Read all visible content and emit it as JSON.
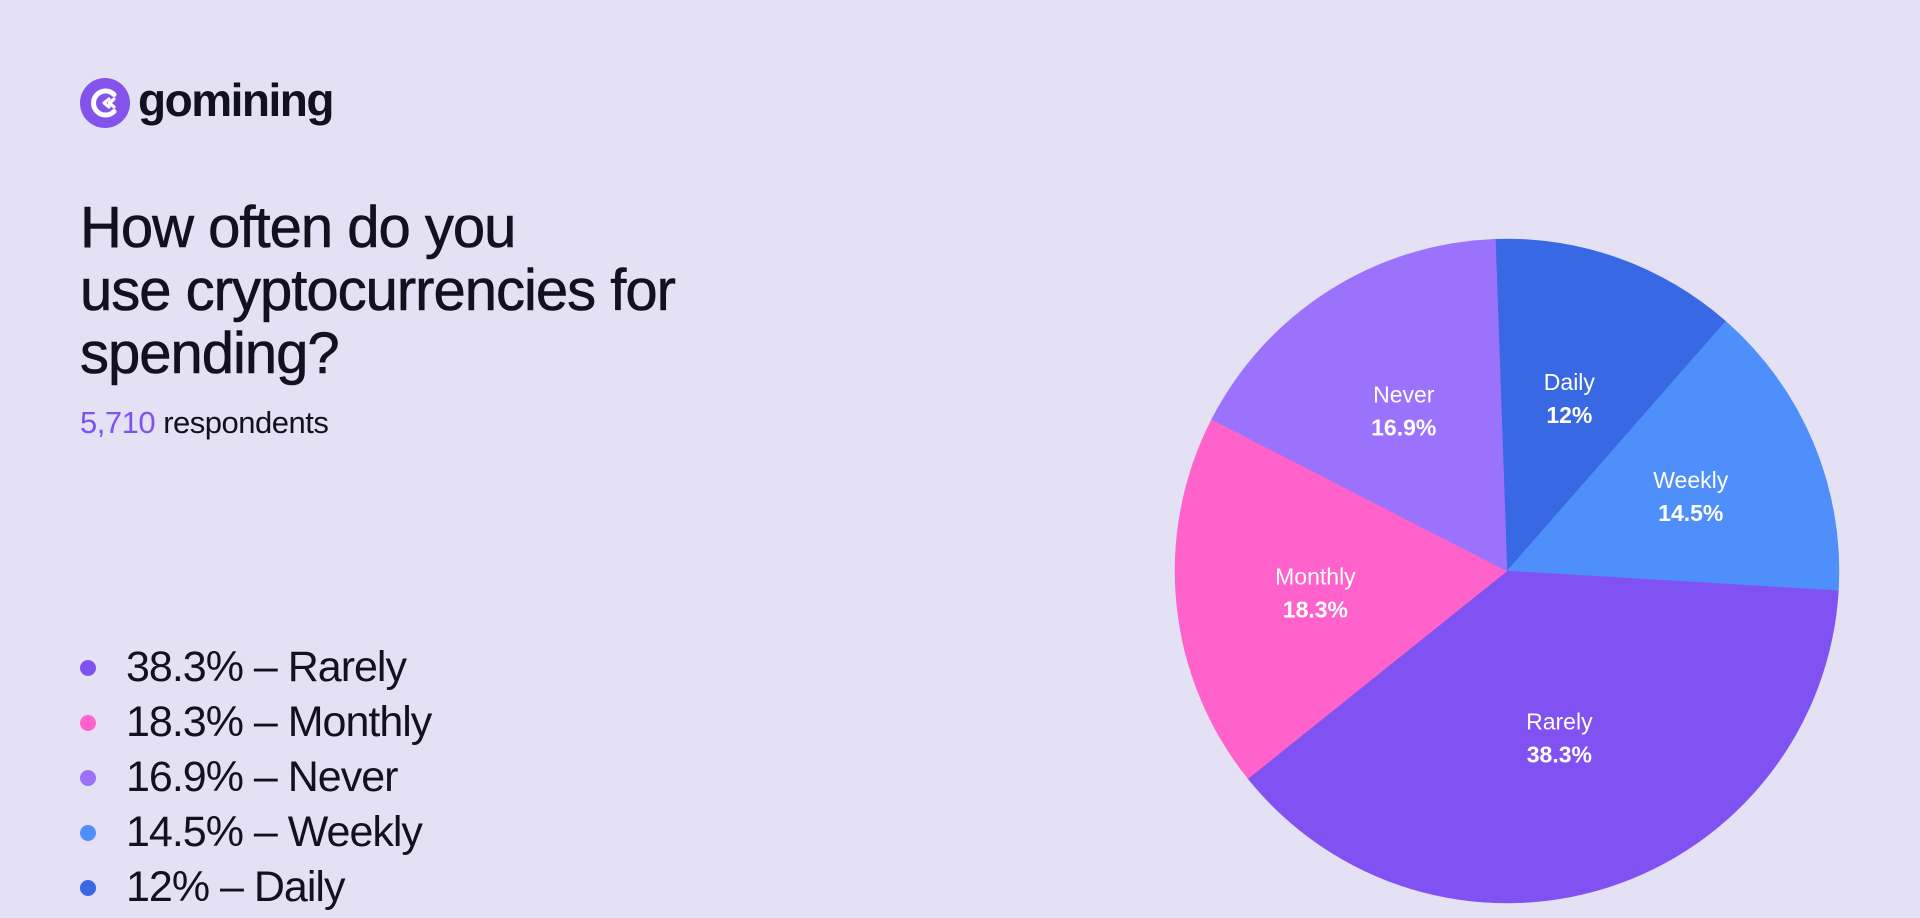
{
  "brand": {
    "name": "gomining",
    "color": "#8354EC",
    "icon": "gomining-logo-icon"
  },
  "header": {
    "title": "How often do you use cryptocurrencies for spending?",
    "title_lines": [
      "How often do you",
      "use cryptocurrencies for",
      "spending?"
    ],
    "respondents_count": "5,710",
    "respondents_label": "respondents"
  },
  "legend": [
    {
      "text": "38.3% – Rarely",
      "color": "#8152F2"
    },
    {
      "text": "18.3% – Monthly",
      "color": "#FF62CB"
    },
    {
      "text": "16.9% – Never",
      "color": "#9B72FB"
    },
    {
      "text": "14.5% – Weekly",
      "color": "#4F8FFB"
    },
    {
      "text": "12% – Daily",
      "color": "#3868E4"
    }
  ],
  "chart_data": {
    "type": "pie",
    "title": "How often do you use cryptocurrencies for spending?",
    "subtitle": "5,710 respondents",
    "categories": [
      "Daily",
      "Weekly",
      "Rarely",
      "Monthly",
      "Never"
    ],
    "values": [
      12,
      14.5,
      38.3,
      18.3,
      16.9
    ],
    "value_labels": [
      "12%",
      "14.5%",
      "38.3%",
      "18.3%",
      "16.9%"
    ],
    "colors": [
      "#3868E4",
      "#4F8FFB",
      "#8152F2",
      "#FF62CB",
      "#9B72FB"
    ],
    "start_angle_deg": -2,
    "direction": "clockwise",
    "legend_position": "left",
    "unit": "%"
  }
}
